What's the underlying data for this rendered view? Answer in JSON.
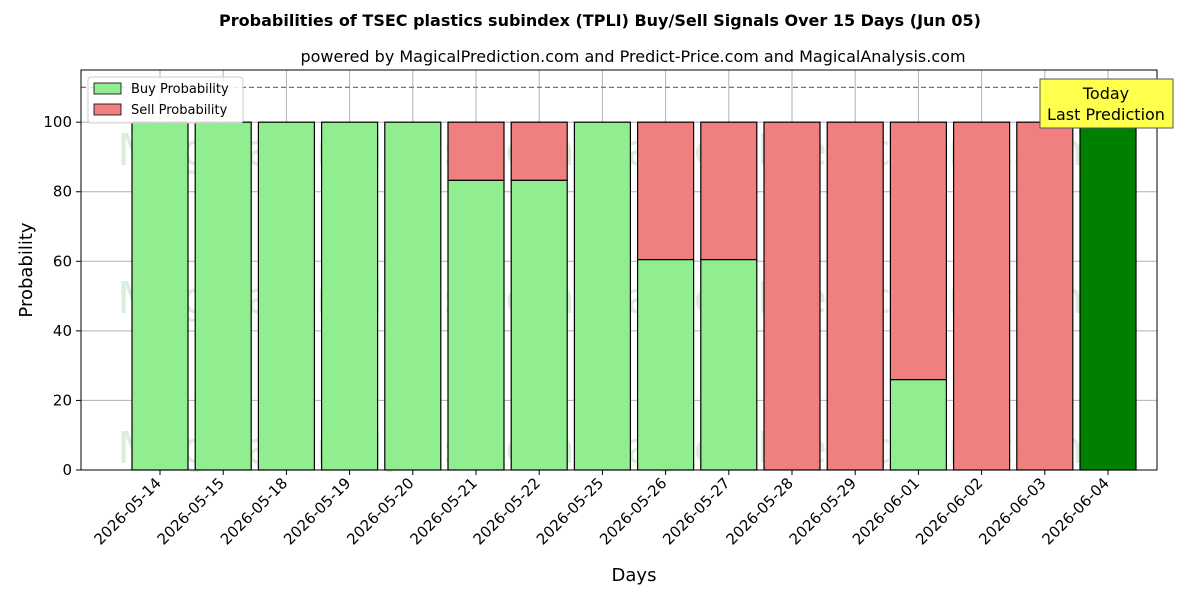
{
  "chart_data": {
    "type": "bar",
    "stacked": true,
    "title": "Probabilities of TSEC plastics subindex (TPLI) Buy/Sell Signals Over 15 Days (Jun 05)",
    "subtitle": "powered by MagicalPrediction.com and Predict-Price.com and MagicalAnalysis.com",
    "xlabel": "Days",
    "ylabel": "Probability",
    "ylim": [
      0,
      115
    ],
    "yticks": [
      0,
      20,
      40,
      60,
      80,
      100
    ],
    "grid": true,
    "reference_line": 110,
    "categories": [
      "2026-05-14",
      "2026-05-15",
      "2026-05-18",
      "2026-05-19",
      "2026-05-20",
      "2026-05-21",
      "2026-05-22",
      "2026-05-25",
      "2026-05-26",
      "2026-05-27",
      "2026-05-28",
      "2026-05-29",
      "2026-06-01",
      "2026-06-02",
      "2026-06-03",
      "2026-06-04"
    ],
    "series": [
      {
        "name": "Buy Probability",
        "color": "#90ee90",
        "values": [
          100,
          100,
          100,
          100,
          100,
          83.3,
          83.3,
          100,
          60.5,
          60.5,
          0,
          0,
          26,
          0,
          0,
          100
        ]
      },
      {
        "name": "Sell Probability",
        "color": "#f08080",
        "values": [
          0,
          0,
          0,
          0,
          0,
          16.7,
          16.7,
          0,
          39.5,
          39.5,
          100,
          100,
          74,
          100,
          100,
          0
        ]
      }
    ],
    "highlight": {
      "index": 15,
      "color": "#008000"
    },
    "legend_position": "top-left",
    "annotation": {
      "line1": "Today",
      "line2": "Last Prediction",
      "background": "#ffff4d"
    },
    "watermarks": [
      "MagicalAnalysis.com",
      "MagicalPrediction.com"
    ]
  }
}
